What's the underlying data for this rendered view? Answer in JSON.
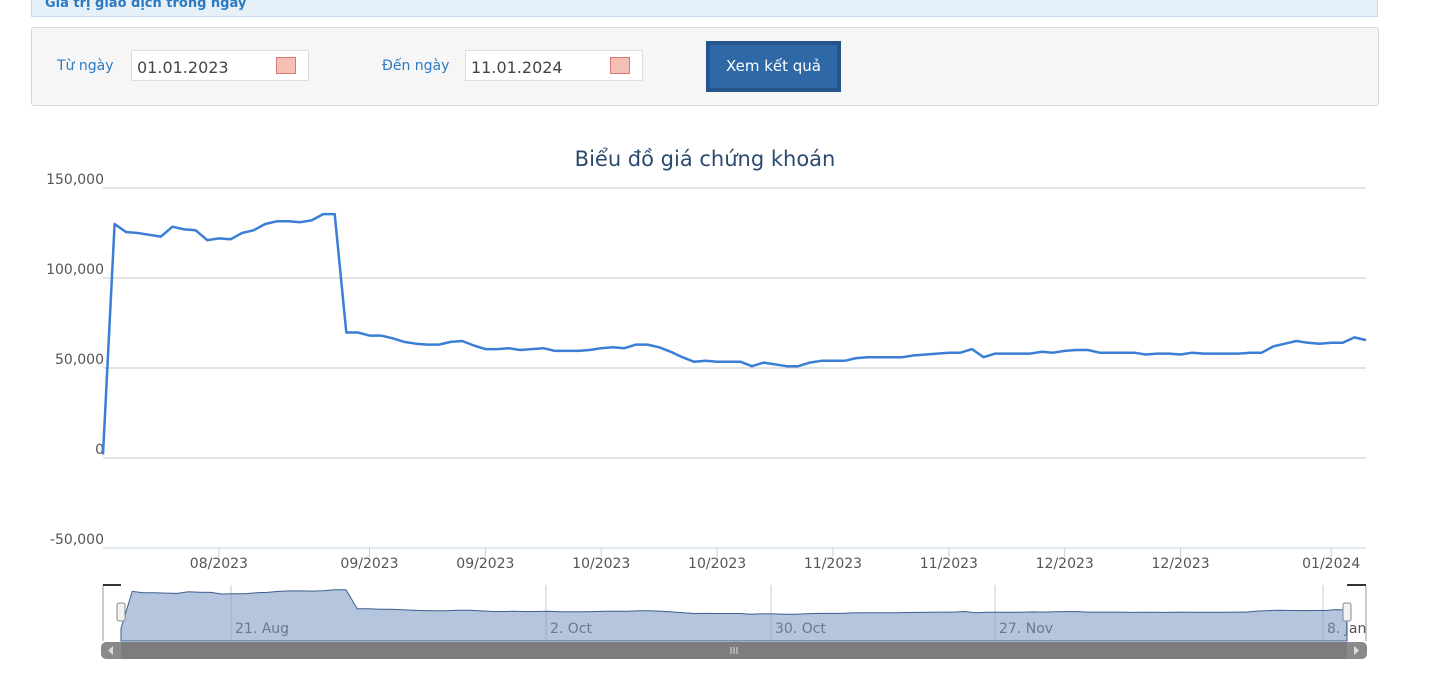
{
  "header": {
    "title": "Giá trị giao dịch trong ngày"
  },
  "form": {
    "from_label": "Từ ngày",
    "from_value": "01.01.2023",
    "to_label": "Đến ngày",
    "to_value": "11.01.2024",
    "button": "Xem kết quả"
  },
  "chart_data": {
    "type": "line",
    "title": "Biểu đồ giá chứng khoán",
    "color": "#3a7fd5",
    "grid": true,
    "categories": [
      null,
      null,
      null,
      null,
      null,
      null,
      null,
      null,
      null,
      null,
      "08/2023",
      null,
      null,
      null,
      null,
      null,
      null,
      null,
      null,
      null,
      null,
      null,
      null,
      "09/2023",
      null,
      null,
      null,
      null,
      null,
      null,
      null,
      null,
      null,
      "09/2023",
      null,
      null,
      null,
      null,
      null,
      null,
      null,
      null,
      null,
      "10/2023",
      null,
      null,
      null,
      null,
      null,
      null,
      null,
      null,
      null,
      "10/2023",
      null,
      null,
      null,
      null,
      null,
      null,
      null,
      null,
      null,
      "11/2023",
      null,
      null,
      null,
      null,
      null,
      null,
      null,
      null,
      null,
      "11/2023",
      null,
      null,
      null,
      null,
      null,
      null,
      null,
      null,
      null,
      "12/2023",
      null,
      null,
      null,
      null,
      null,
      null,
      null,
      null,
      null,
      "12/2023",
      null,
      null,
      null,
      null,
      null,
      null,
      null,
      null,
      null,
      null,
      null,
      null,
      "01/2024",
      null,
      null,
      null
    ],
    "values": [
      2000,
      130000,
      125500,
      125000,
      124000,
      123000,
      128500,
      127000,
      126500,
      121000,
      122000,
      121500,
      125000,
      126500,
      130000,
      131500,
      131500,
      131000,
      132000,
      135500,
      135500,
      69700,
      69700,
      68000,
      68000,
      66500,
      64500,
      63500,
      63000,
      63000,
      64500,
      65000,
      62500,
      60500,
      60500,
      61000,
      60000,
      60500,
      61000,
      59500,
      59500,
      59500,
      60000,
      61000,
      61500,
      61000,
      63000,
      63000,
      61500,
      59000,
      56000,
      53500,
      54000,
      53500,
      53500,
      53500,
      51000,
      53000,
      52000,
      51000,
      51000,
      53000,
      54000,
      54000,
      54000,
      55500,
      56000,
      56000,
      56000,
      56000,
      57000,
      57500,
      58000,
      58500,
      58500,
      60500,
      56000,
      58000,
      58000,
      58000,
      58000,
      59000,
      58500,
      59500,
      60000,
      60000,
      58500,
      58500,
      58500,
      58500,
      57500,
      58000,
      58000,
      57500,
      58500,
      58000,
      58000,
      58000,
      58000,
      58500,
      58500,
      62000,
      63500,
      65000,
      64000,
      63500,
      64000,
      64000,
      67000,
      65500
    ],
    "ylim": [
      -50000,
      150000
    ],
    "yticks": [
      {
        "value": -50000,
        "label": "-50,000"
      },
      0,
      {
        "value": 50000,
        "label": "50,000"
      },
      {
        "value": 100000,
        "label": "100,000"
      },
      {
        "value": 150000,
        "label": "150,000"
      }
    ],
    "navigator_labels": [
      "21. Aug",
      "2. Oct",
      "30. Oct",
      "27. Nov",
      "8. Jan"
    ]
  }
}
